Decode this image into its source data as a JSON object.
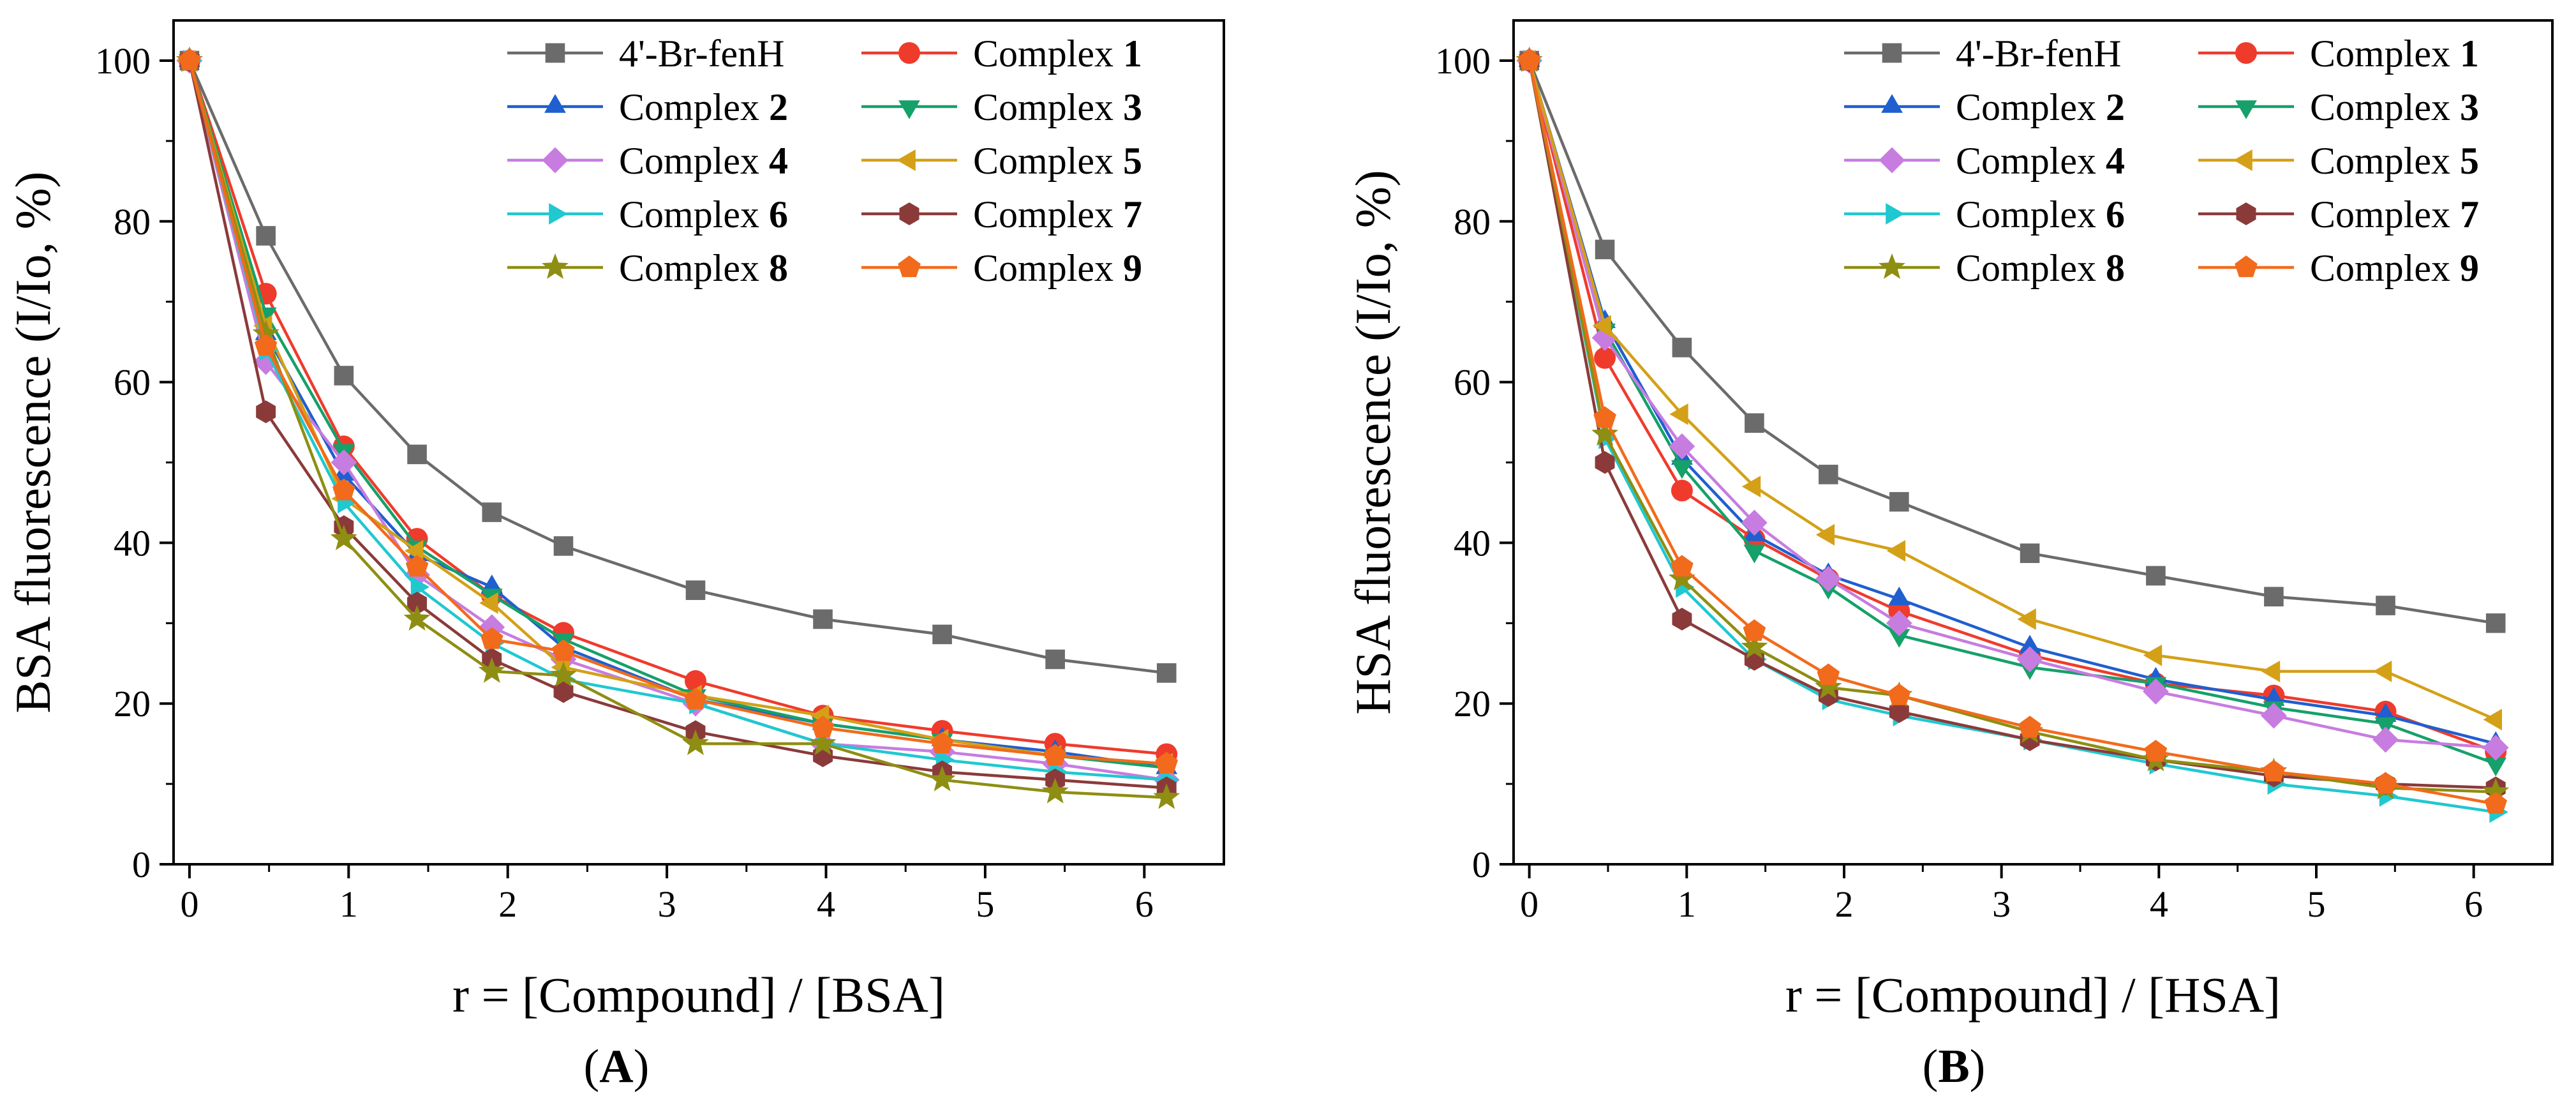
{
  "figure_labels": {
    "A": "A",
    "B": "B"
  },
  "chart_data": [
    {
      "type": "line",
      "panel": "A",
      "title": "",
      "xlabel": "r = [Compound] / [BSA]",
      "ylabel": "BSA fluorescence (I/Io, %)",
      "xlim": [
        -0.1,
        6.5
      ],
      "ylim": [
        0,
        105
      ],
      "xticks": [
        0,
        1,
        2,
        3,
        4,
        5,
        6
      ],
      "yticks": [
        0,
        20,
        40,
        60,
        80,
        100
      ],
      "grid": false,
      "legend_position": "top-right",
      "x": [
        0,
        0.48,
        0.97,
        1.43,
        1.9,
        2.35,
        3.18,
        3.98,
        4.73,
        5.44,
        6.14
      ],
      "series": [
        {
          "name": "4'-Br-fenH",
          "prefix": "4'-Br-fenH",
          "number": "",
          "color": "#6b6b6b",
          "marker": "square",
          "values": [
            100,
            78.2,
            60.8,
            51.0,
            43.8,
            39.6,
            34.1,
            30.5,
            28.6,
            25.5,
            23.8
          ]
        },
        {
          "name": "Complex 1",
          "prefix": "Complex ",
          "number": "1",
          "color": "#ef3b2c",
          "marker": "circle",
          "values": [
            100,
            71.0,
            52.0,
            40.5,
            33.5,
            28.8,
            22.8,
            18.5,
            16.6,
            15.0,
            13.7
          ]
        },
        {
          "name": "Complex 2",
          "prefix": "Complex ",
          "number": "2",
          "color": "#1f5fcf",
          "marker": "triangle-up",
          "values": [
            100,
            66.0,
            48.5,
            38.5,
            34.5,
            27.0,
            20.5,
            17.5,
            15.5,
            14.0,
            12.0
          ]
        },
        {
          "name": "Complex 3",
          "prefix": "Complex ",
          "number": "3",
          "color": "#16a06a",
          "marker": "triangle-down",
          "values": [
            100,
            68.5,
            51.5,
            39.5,
            33.5,
            28.0,
            21.0,
            17.5,
            15.5,
            13.5,
            12.0
          ]
        },
        {
          "name": "Complex 4",
          "prefix": "Complex ",
          "number": "4",
          "color": "#c77ce0",
          "marker": "diamond",
          "values": [
            100,
            62.5,
            50.0,
            36.0,
            29.5,
            25.5,
            20.0,
            15.0,
            14.0,
            12.5,
            10.5
          ]
        },
        {
          "name": "Complex 5",
          "prefix": "Complex ",
          "number": "5",
          "color": "#d4a017",
          "marker": "triangle-left",
          "values": [
            100,
            67.0,
            45.5,
            39.0,
            32.5,
            24.5,
            21.0,
            18.5,
            15.5,
            13.5,
            12.5
          ]
        },
        {
          "name": "Complex 6",
          "prefix": "Complex ",
          "number": "6",
          "color": "#20c8d0",
          "marker": "triangle-right",
          "values": [
            100,
            64.0,
            45.0,
            34.5,
            27.5,
            23.0,
            20.0,
            15.0,
            13.0,
            11.5,
            10.5
          ]
        },
        {
          "name": "Complex 7",
          "prefix": "Complex ",
          "number": "7",
          "color": "#8b3a3a",
          "marker": "hexagon",
          "values": [
            100,
            56.3,
            42.0,
            32.5,
            25.5,
            21.5,
            16.5,
            13.5,
            11.5,
            10.5,
            9.5
          ]
        },
        {
          "name": "Complex 8",
          "prefix": "Complex ",
          "number": "8",
          "color": "#8e8e12",
          "marker": "star",
          "values": [
            100,
            66.0,
            40.5,
            30.5,
            24.0,
            23.5,
            15.0,
            15.0,
            10.5,
            9.0,
            8.3
          ]
        },
        {
          "name": "Complex 9",
          "prefix": "Complex ",
          "number": "9",
          "color": "#f26a1b",
          "marker": "pentagon",
          "values": [
            100,
            64.5,
            46.5,
            37.0,
            28.0,
            26.5,
            20.5,
            17.0,
            15.0,
            13.5,
            12.5
          ]
        }
      ]
    },
    {
      "type": "line",
      "panel": "B",
      "title": "",
      "xlabel": "r = [Compound] / [HSA]",
      "ylabel": "HSA fluorescence (I/Io, %)",
      "xlim": [
        -0.1,
        6.5
      ],
      "ylim": [
        0,
        105
      ],
      "xticks": [
        0,
        1,
        2,
        3,
        4,
        5,
        6
      ],
      "yticks": [
        0,
        20,
        40,
        60,
        80,
        100
      ],
      "grid": false,
      "legend_position": "top-right",
      "x": [
        0,
        0.48,
        0.97,
        1.43,
        1.9,
        2.35,
        3.18,
        3.98,
        4.73,
        5.44,
        6.14
      ],
      "series": [
        {
          "name": "4'-Br-fenH",
          "prefix": "4'-Br-fenH",
          "number": "",
          "color": "#6b6b6b",
          "marker": "square",
          "values": [
            100,
            76.5,
            64.3,
            54.9,
            48.5,
            45.1,
            38.7,
            35.9,
            33.3,
            32.2,
            30.0
          ]
        },
        {
          "name": "Complex 1",
          "prefix": "Complex ",
          "number": "1",
          "color": "#ef3b2c",
          "marker": "circle",
          "values": [
            100,
            63.0,
            46.5,
            40.5,
            35.5,
            31.5,
            26.0,
            22.5,
            21.0,
            19.0,
            14.0
          ]
        },
        {
          "name": "Complex 2",
          "prefix": "Complex ",
          "number": "2",
          "color": "#1f5fcf",
          "marker": "triangle-up",
          "values": [
            100,
            67.5,
            50.5,
            41.0,
            36.0,
            33.0,
            27.0,
            23.0,
            20.5,
            18.5,
            15.0
          ]
        },
        {
          "name": "Complex 3",
          "prefix": "Complex ",
          "number": "3",
          "color": "#16a06a",
          "marker": "triangle-down",
          "values": [
            100,
            66.5,
            49.5,
            39.0,
            34.5,
            28.5,
            24.5,
            22.5,
            19.5,
            17.5,
            12.5
          ]
        },
        {
          "name": "Complex 4",
          "prefix": "Complex ",
          "number": "4",
          "color": "#c77ce0",
          "marker": "diamond",
          "values": [
            100,
            65.5,
            52.0,
            42.5,
            35.5,
            30.0,
            25.5,
            21.5,
            18.5,
            15.5,
            14.5
          ]
        },
        {
          "name": "Complex 5",
          "prefix": "Complex ",
          "number": "5",
          "color": "#d4a017",
          "marker": "triangle-left",
          "values": [
            100,
            67.0,
            56.0,
            47.0,
            41.0,
            39.0,
            30.5,
            26.0,
            24.0,
            24.0,
            18.0
          ]
        },
        {
          "name": "Complex 6",
          "prefix": "Complex ",
          "number": "6",
          "color": "#20c8d0",
          "marker": "triangle-right",
          "values": [
            100,
            53.0,
            34.5,
            25.5,
            20.5,
            18.5,
            15.5,
            12.5,
            10.0,
            8.5,
            6.5
          ]
        },
        {
          "name": "Complex 7",
          "prefix": "Complex ",
          "number": "7",
          "color": "#8b3a3a",
          "marker": "hexagon",
          "values": [
            100,
            50.0,
            30.5,
            25.5,
            21.0,
            19.0,
            15.5,
            13.0,
            11.0,
            10.0,
            9.5
          ]
        },
        {
          "name": "Complex 8",
          "prefix": "Complex ",
          "number": "8",
          "color": "#8e8e12",
          "marker": "star",
          "values": [
            100,
            53.5,
            35.5,
            27.0,
            22.0,
            21.0,
            16.5,
            13.0,
            11.5,
            9.5,
            9.0
          ]
        },
        {
          "name": "Complex 9",
          "prefix": "Complex ",
          "number": "9",
          "color": "#f26a1b",
          "marker": "pentagon",
          "values": [
            100,
            55.5,
            37.0,
            29.0,
            23.5,
            21.0,
            17.0,
            14.0,
            11.5,
            10.0,
            7.5
          ]
        }
      ]
    }
  ]
}
